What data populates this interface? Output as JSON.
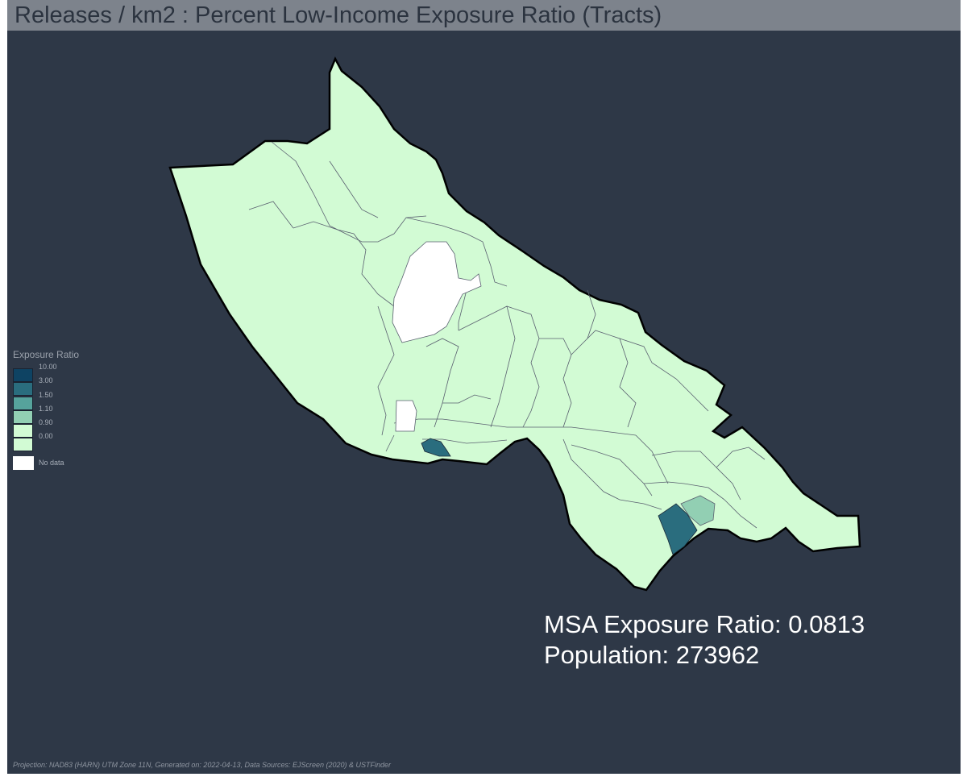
{
  "title": "Releases / km2 : Percent Low-Income Exposure Ratio (Tracts)",
  "legend": {
    "title": "Exposure Ratio",
    "classes": [
      {
        "label": "10.00",
        "color": "#0e4363"
      },
      {
        "label": "3.00",
        "color": "#2a6d7e"
      },
      {
        "label": "1.50",
        "color": "#56a39c"
      },
      {
        "label": "1.10",
        "color": "#92cfb3"
      },
      {
        "label": "0.90",
        "color": "#d2fbd4"
      },
      {
        "label": "0.00",
        "color": "#d2fbd4"
      }
    ],
    "no_data_label": "No data",
    "no_data_color": "#ffffff"
  },
  "stats": {
    "exposure_ratio": "MSA Exposure Ratio: 0.0813",
    "population": "Population: 273962"
  },
  "footer": "Projection: NAD83 (HARN) UTM Zone 11N, Generated on: 2022-04-13, Data Sources: EJScreen (2020) & USTFinder",
  "colors": {
    "background": "#2e3847",
    "title_bar": "#7d838c",
    "county_fill": "#d2fbd4",
    "tract_lines": "#5a6070",
    "outline": "#000000"
  }
}
